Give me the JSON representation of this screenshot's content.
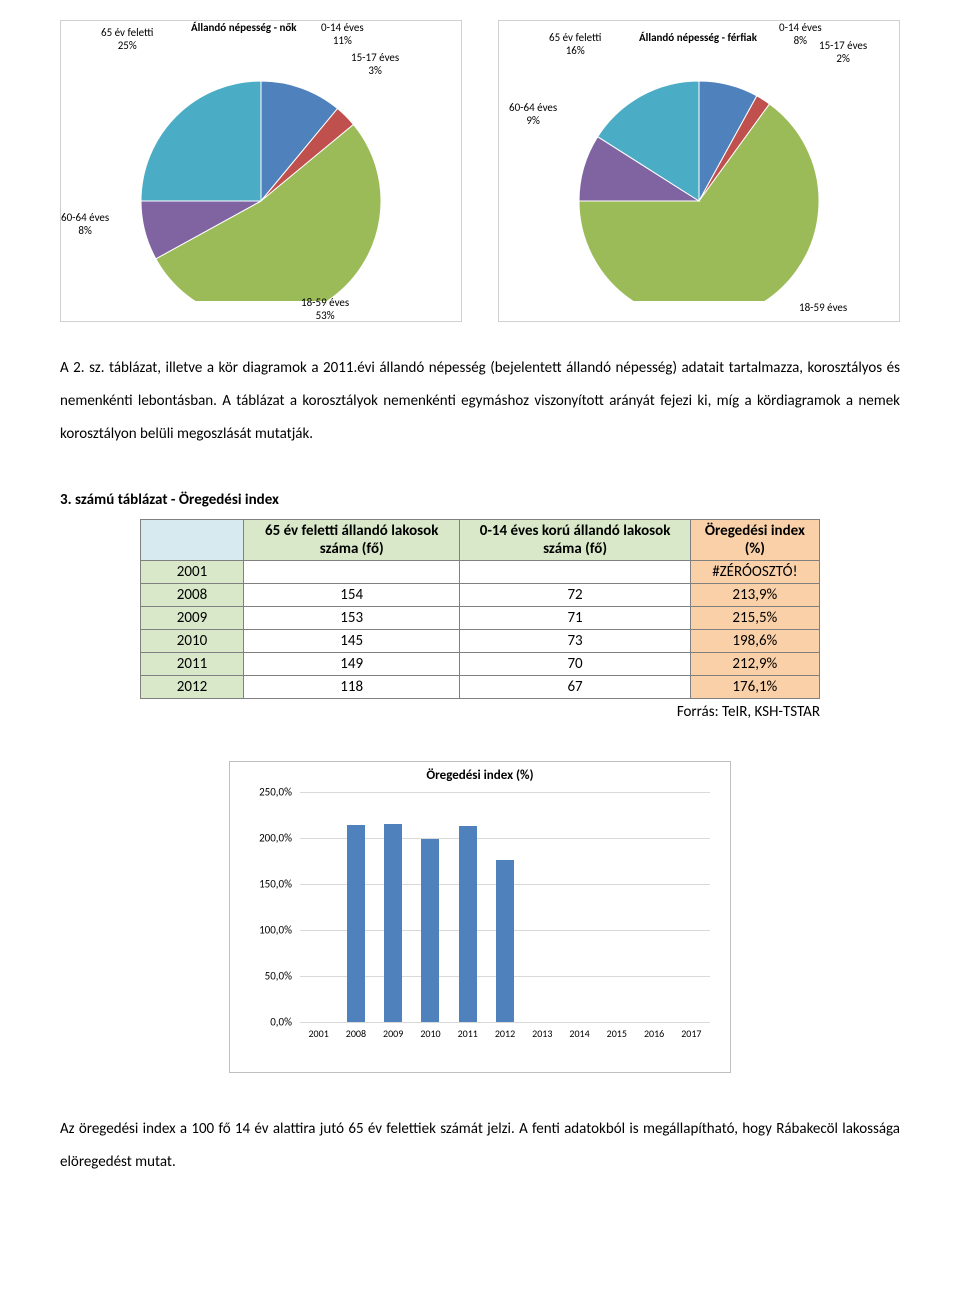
{
  "pie1": {
    "title": "Állandó népesség - nők",
    "slices": [
      {
        "label": "0-14 éves",
        "pct": 11,
        "color": "#4f81bd"
      },
      {
        "label": "15-17 éves",
        "pct": 3,
        "color": "#c0504d"
      },
      {
        "label": "18-59 éves",
        "pct": 53,
        "color": "#9bbb59"
      },
      {
        "label": "60-64 éves",
        "pct": 8,
        "color": "#8064a2"
      },
      {
        "label": "65 év feletti",
        "pct": 25,
        "color": "#4bacc6"
      }
    ],
    "labels": {
      "tl": "65 év feletti\n25%",
      "tc": "Állandó népesség - nők",
      "tr1": "0-14 éves\n11%",
      "tr2": "15-17 éves\n3%",
      "ml": "60-64 éves\n8%",
      "bc": "18-59 éves\n53%"
    }
  },
  "pie2": {
    "title": "Állandó népesség - férfiak",
    "slices": [
      {
        "label": "0-14 éves",
        "pct": 8,
        "color": "#4f81bd"
      },
      {
        "label": "15-17 éves",
        "pct": 2,
        "color": "#c0504d"
      },
      {
        "label": "18-59 éves",
        "pct": 65,
        "color": "#9bbb59"
      },
      {
        "label": "60-64 éves",
        "pct": 9,
        "color": "#8064a2"
      },
      {
        "label": "65 év feletti",
        "pct": 16,
        "color": "#4bacc6"
      }
    ],
    "labels": {
      "tl": "65 év feletti\n16%",
      "tc": "Állandó népesség - férfiak",
      "tr1": "0-14 éves\n8%",
      "tr2": "15-17 éves\n2%",
      "ml": "60-64 éves\n9%",
      "bc": "18-59 éves"
    }
  },
  "paragraph": "A 2. sz. táblázat, illetve a kör diagramok a 2011.évi állandó népesség (bejelentett állandó népesség) adatait tartalmazza, korosztályos és nemenkénti lebontásban. A táblázat a korosztályok nemenkénti egymáshoz viszonyított arányát fejezi ki, míg a kördiagramok a nemek korosztályon belüli megoszlását mutatják.",
  "table": {
    "title": "3. számú táblázat - Öregedési index",
    "headers": [
      "",
      "65 év feletti állandó lakosok száma (fő)",
      "0-14 éves korú állandó lakosok száma (fő)",
      "Öregedési index (%)"
    ],
    "rows": [
      [
        "2001",
        "",
        "",
        "#ZÉRÓOSZTÓ!"
      ],
      [
        "2008",
        "154",
        "72",
        "213,9%"
      ],
      [
        "2009",
        "153",
        "71",
        "215,5%"
      ],
      [
        "2010",
        "145",
        "73",
        "198,6%"
      ],
      [
        "2011",
        "149",
        "70",
        "212,9%"
      ],
      [
        "2012",
        "118",
        "67",
        "176,1%"
      ]
    ],
    "source": "Forrás: TeIR, KSH-TSTAR"
  },
  "bar_chart": {
    "title": "Öregedési index (%)",
    "ylim": [
      0,
      250
    ],
    "ytick_step": 50,
    "ytick_suffix": ",0%",
    "bar_color": "#4f81bd",
    "grid_color": "#d9d9d9",
    "categories": [
      "2001",
      "2008",
      "2009",
      "2010",
      "2011",
      "2012",
      "2013",
      "2014",
      "2015",
      "2016",
      "2017"
    ],
    "values": [
      0,
      213.9,
      215.5,
      198.6,
      212.9,
      176.1,
      0,
      0,
      0,
      0,
      0
    ]
  },
  "footer": "Az öregedési index a 100 fő 14 év alattira jutó 65 év felettiek számát jelzi. A fenti adatokból is megállapítható, hogy Rábakecöl lakossága elöregedést mutat."
}
